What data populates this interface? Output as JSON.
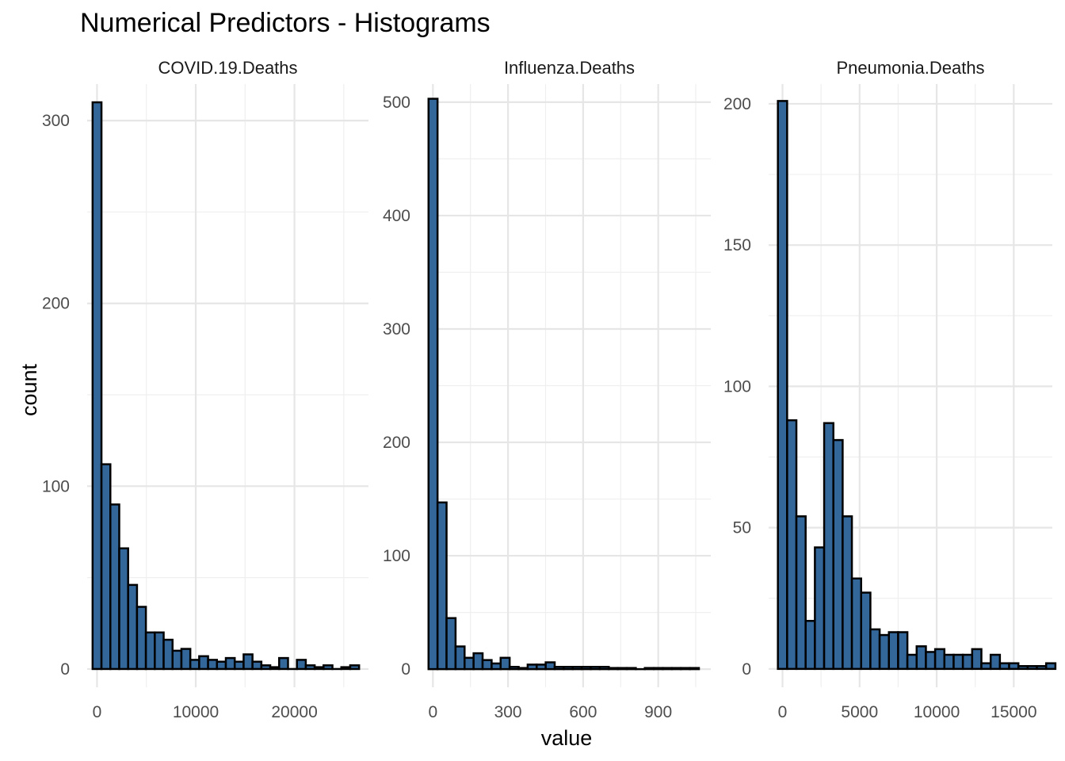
{
  "title": "Numerical Predictors - Histograms",
  "x_axis_title": "value",
  "y_axis_title": "count",
  "colors": {
    "bar_fill": "#336699",
    "bar_outline": "#000000",
    "grid": "#e6e6e6",
    "background": "#ffffff"
  },
  "chart_data": {
    "type": "bar",
    "subtype": "faceted-histogram",
    "title": "Numerical Predictors - Histograms",
    "xlabel": "value",
    "ylabel": "count",
    "grid": true,
    "legend": "none",
    "panels": [
      {
        "name": "COVID.19.Deaths",
        "xlim": [
          -1000,
          27500
        ],
        "ylim": [
          -10,
          320
        ],
        "x_ticks": [
          0,
          10000,
          20000
        ],
        "x_tick_labels": [
          "0",
          "10000",
          "20000"
        ],
        "y_ticks": [
          0,
          100,
          200,
          300
        ],
        "y_tick_labels": [
          "0",
          "100",
          "200",
          "300"
        ],
        "bins": {
          "start": -450,
          "width": 900
        },
        "values": [
          310,
          112,
          90,
          66,
          46,
          34,
          20,
          20,
          16,
          10,
          11,
          5,
          7,
          5,
          4,
          6,
          4,
          8,
          4,
          2,
          1,
          6,
          0,
          5,
          2,
          1,
          2,
          0,
          1,
          2
        ]
      },
      {
        "name": "Influenza.Deaths",
        "xlim": [
          -20,
          1110
        ],
        "ylim": [
          -16,
          516
        ],
        "x_ticks": [
          0,
          300,
          600,
          900
        ],
        "x_tick_labels": [
          "0",
          "300",
          "600",
          "900"
        ],
        "y_ticks": [
          0,
          100,
          200,
          300,
          400,
          500
        ],
        "y_tick_labels": [
          "0",
          "100",
          "200",
          "300",
          "400",
          "500"
        ],
        "bins": {
          "start": -17.5,
          "width": 36
        },
        "values": [
          503,
          147,
          45,
          20,
          10,
          14,
          8,
          5,
          10,
          2,
          1,
          4,
          4,
          6,
          2,
          2,
          2,
          2,
          2,
          2,
          1,
          1,
          1,
          0,
          1,
          1,
          1,
          1,
          1,
          1
        ]
      },
      {
        "name": "Pneumonia.Deaths",
        "xlim": [
          -900,
          17500
        ],
        "ylim": [
          -6.5,
          207
        ],
        "x_ticks": [
          0,
          5000,
          10000,
          15000
        ],
        "x_tick_labels": [
          "0",
          "5000",
          "10000",
          "15000"
        ],
        "y_ticks": [
          0,
          50,
          100,
          150,
          200
        ],
        "y_tick_labels": [
          "0",
          "50",
          "100",
          "150",
          "200"
        ],
        "bins": {
          "start": -300,
          "width": 600
        },
        "values": [
          201,
          88,
          54,
          17,
          43,
          87,
          81,
          54,
          32,
          27,
          14,
          12,
          13,
          13,
          5,
          8,
          6,
          7,
          5,
          5,
          5,
          7,
          2,
          5,
          2,
          2,
          1,
          1,
          1,
          2
        ]
      }
    ]
  }
}
